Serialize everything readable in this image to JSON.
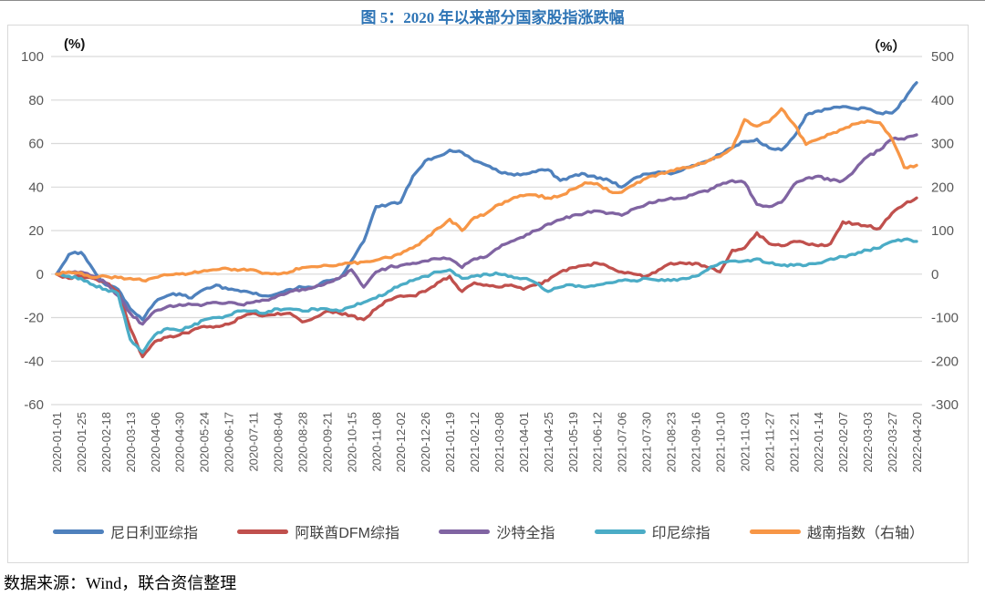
{
  "title": "图 5：2020 年以来部分国家股指涨跌幅",
  "footer": "数据来源：Wind，联合资信整理",
  "axes": {
    "left_unit": "(%)",
    "right_unit": "（%）"
  },
  "chart_data": {
    "type": "line",
    "title": "图 5：2020 年以来部分国家股指涨跌幅",
    "x_start": "2020-01-01",
    "x_step_days": 12,
    "x_tick_labels": [
      "2020-01-01",
      "2020-01-25",
      "2020-02-18",
      "2020-03-13",
      "2020-04-06",
      "2020-04-30",
      "2020-05-24",
      "2020-06-17",
      "2020-07-11",
      "2020-08-04",
      "2020-08-28",
      "2020-09-21",
      "2020-10-15",
      "2020-11-08",
      "2020-12-02",
      "2020-12-26",
      "2021-01-19",
      "2021-02-12",
      "2021-03-08",
      "2021-04-01",
      "2021-04-25",
      "2021-05-19",
      "2021-06-12",
      "2021-07-06",
      "2021-07-30",
      "2021-08-23",
      "2021-09-16",
      "2021-10-10",
      "2021-11-03",
      "2021-11-27",
      "2021-12-21",
      "2022-01-14",
      "2022-02-07",
      "2022-03-03",
      "2022-03-27",
      "2022-04-20"
    ],
    "left_axis": {
      "unit": "(%)",
      "max": 100,
      "min": -60,
      "ticks": [
        100,
        80,
        60,
        40,
        20,
        0,
        -20,
        -40,
        -60
      ]
    },
    "right_axis": {
      "unit": "（%）",
      "max": 500,
      "min": -300,
      "ticks": [
        500,
        400,
        300,
        200,
        100,
        0,
        -100,
        -200,
        -300
      ]
    },
    "grid": true,
    "legend_position": "bottom",
    "series": [
      {
        "name": "尼日利亚综指",
        "key": "nigeria",
        "color": "#4f81bd",
        "axis": "left",
        "values": [
          0,
          9,
          10,
          2,
          -5,
          -7,
          -16,
          -21,
          -13,
          -10,
          -9,
          -11,
          -7,
          -5,
          -7,
          -8,
          -9,
          -10,
          -9,
          -7,
          -6,
          -6,
          -3,
          -2,
          6,
          15,
          31,
          32,
          33,
          45,
          52,
          54,
          57,
          56,
          52,
          50,
          47,
          46,
          46,
          47,
          48,
          43,
          45,
          46,
          44,
          43,
          40,
          44,
          46,
          47,
          46,
          48,
          50,
          52,
          55,
          58,
          61,
          62,
          58,
          57,
          63,
          73,
          75,
          76,
          77,
          76,
          76,
          74,
          74,
          80,
          88
        ]
      },
      {
        "name": "阿联酋DFM综指",
        "key": "uae-dfm",
        "color": "#c0504d",
        "axis": "left",
        "values": [
          0,
          -2,
          -1,
          -2,
          -4,
          -8,
          -25,
          -38,
          -31,
          -29,
          -28,
          -26,
          -24,
          -24,
          -23,
          -20,
          -18,
          -19,
          -18,
          -18,
          -22,
          -20,
          -17,
          -18,
          -19,
          -21,
          -16,
          -12,
          -10,
          -10,
          -8,
          -4,
          -1,
          -8,
          -4,
          -5,
          -6,
          -5,
          -7,
          -5,
          -3,
          1,
          3,
          4,
          5,
          3,
          1,
          0,
          -1,
          2,
          5,
          5,
          5,
          3,
          1,
          11,
          12,
          19,
          14,
          13,
          15,
          14,
          13,
          14,
          24,
          23,
          22,
          21,
          28,
          32,
          35
        ]
      },
      {
        "name": "沙特全指",
        "key": "saudi",
        "color": "#8064a2",
        "axis": "left",
        "values": [
          0,
          1,
          1,
          -1,
          -4,
          -10,
          -18,
          -23,
          -17,
          -15,
          -14,
          -14,
          -14,
          -13,
          -13,
          -14,
          -13,
          -12,
          -10,
          -8,
          -7,
          -6,
          -4,
          -2,
          2,
          -6,
          1,
          3,
          4,
          5,
          6,
          7,
          7,
          3,
          7,
          8,
          12,
          15,
          17,
          20,
          23,
          25,
          27,
          28,
          29,
          28,
          27,
          30,
          32,
          34,
          35,
          35,
          37,
          38,
          41,
          43,
          42,
          32,
          31,
          33,
          41,
          44,
          45,
          43,
          43,
          48,
          54,
          57,
          62,
          62,
          64
        ]
      },
      {
        "name": "印尼综指",
        "key": "indonesia",
        "color": "#4bacc6",
        "axis": "left",
        "values": [
          0,
          -1,
          -2,
          -5,
          -7,
          -9,
          -30,
          -36,
          -28,
          -25,
          -26,
          -24,
          -21,
          -20,
          -19,
          -17,
          -17,
          -18,
          -16,
          -16,
          -17,
          -16,
          -16,
          -17,
          -15,
          -13,
          -11,
          -8,
          -5,
          -3,
          -1,
          1,
          2,
          -2,
          -1,
          0,
          0,
          -1,
          -2,
          -4,
          -8,
          -6,
          -5,
          -6,
          -5,
          -4,
          -3,
          -3,
          -2,
          -3,
          -3,
          -2,
          -1,
          2,
          5,
          6,
          6,
          7,
          5,
          4,
          4,
          4,
          5,
          7,
          8,
          9,
          11,
          12,
          15,
          16,
          15
        ]
      },
      {
        "name": "越南指数（右轴）",
        "key": "vietnam",
        "color": "#f79646",
        "axis": "right",
        "values": [
          0,
          5,
          3,
          -8,
          -5,
          -8,
          -10,
          -15,
          -8,
          -2,
          0,
          2,
          8,
          10,
          12,
          10,
          10,
          2,
          0,
          5,
          15,
          17,
          20,
          22,
          25,
          28,
          32,
          38,
          46,
          60,
          80,
          105,
          126,
          100,
          130,
          140,
          160,
          172,
          180,
          182,
          175,
          180,
          195,
          210,
          208,
          190,
          188,
          205,
          220,
          230,
          238,
          245,
          250,
          260,
          270,
          290,
          355,
          340,
          350,
          380,
          345,
          298,
          310,
          322,
          333,
          345,
          352,
          348,
          310,
          245,
          250
        ]
      }
    ]
  }
}
